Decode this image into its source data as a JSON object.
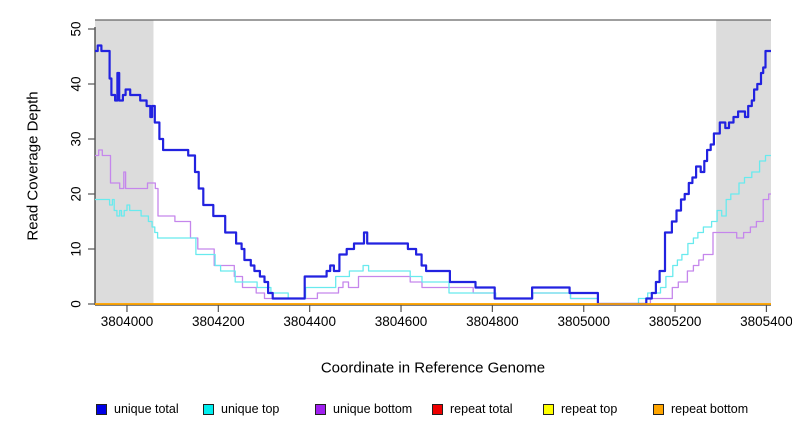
{
  "figure_background": "#ffffff",
  "chart_data": {
    "type": "line",
    "subtype": "step",
    "title": "",
    "xlabel": "Coordinate in Reference Genome",
    "ylabel": "Read Coverage Depth",
    "x_range": [
      3803930,
      3805410
    ],
    "y_range": [
      0,
      50
    ],
    "x_ticks": [
      3804000,
      3804200,
      3804400,
      3804600,
      3804800,
      3805000,
      3805200,
      3805400
    ],
    "x_tick_labels": [
      "3804000",
      "3804200",
      "3804400",
      "3804600",
      "3804800",
      "3805000",
      "3805200",
      "3805400"
    ],
    "y_ticks": [
      0,
      10,
      20,
      30,
      40,
      50
    ],
    "y_tick_labels": [
      "0",
      "10",
      "20",
      "30",
      "40",
      "50"
    ],
    "grid": false,
    "legend_position": "bottom",
    "shaded_regions": [
      {
        "name": "left-shaded-region",
        "x_start": 3803930,
        "x_end": 3804058,
        "color": "#DCDCDC"
      },
      {
        "name": "right-shaded-region",
        "x_start": 3805290,
        "x_end": 3805410,
        "color": "#DCDCDC"
      }
    ],
    "axis_colors": {
      "axis_line": "#333333",
      "tick": "#555555",
      "box_top": "#666666"
    },
    "legend_items": [
      {
        "label": "unique total",
        "color": "#0000E6"
      },
      {
        "label": "unique top",
        "color": "#00EEEE"
      },
      {
        "label": "unique bottom",
        "color": "#A020F0"
      },
      {
        "label": "repeat total",
        "color": "#EE0000"
      },
      {
        "label": "repeat top",
        "color": "#FFFF00"
      },
      {
        "label": "repeat bottom",
        "color": "#FFA500"
      }
    ],
    "series": [
      {
        "name": "repeat total",
        "color": "#EE0000",
        "line_color": "#EE0000",
        "line_width": 1.2,
        "points": [
          [
            3803930,
            0
          ]
        ]
      },
      {
        "name": "repeat top",
        "color": "#FFFF00",
        "line_color": "#FFFF00",
        "line_width": 1.2,
        "points": [
          [
            3803930,
            0
          ]
        ]
      },
      {
        "name": "unique bottom",
        "color": "#A020F0",
        "line_color": "#C586EC",
        "line_width": 1.3,
        "points": [
          [
            3803930,
            27
          ],
          [
            3803938,
            28
          ],
          [
            3803946,
            27
          ],
          [
            3803964,
            22
          ],
          [
            3803984,
            21
          ],
          [
            3803993,
            24
          ],
          [
            3803997,
            21
          ],
          [
            3804045,
            22
          ],
          [
            3804062,
            21
          ],
          [
            3804068,
            16
          ],
          [
            3804105,
            15
          ],
          [
            3804139,
            12
          ],
          [
            3804155,
            10
          ],
          [
            3804191,
            7
          ],
          [
            3804235,
            5
          ],
          [
            3804253,
            3
          ],
          [
            3804283,
            2
          ],
          [
            3804301,
            1
          ],
          [
            3804417,
            2
          ],
          [
            3804463,
            3
          ],
          [
            3804473,
            4
          ],
          [
            3804485,
            3
          ],
          [
            3804507,
            5
          ],
          [
            3804620,
            4
          ],
          [
            3804646,
            3
          ],
          [
            3804758,
            2
          ],
          [
            3804807,
            1
          ],
          [
            3804888,
            2
          ],
          [
            3804971,
            1
          ],
          [
            3805032,
            0
          ],
          [
            3805146,
            1
          ],
          [
            3805194,
            3
          ],
          [
            3805207,
            4
          ],
          [
            3805227,
            6
          ],
          [
            3805240,
            7
          ],
          [
            3805252,
            8
          ],
          [
            3805262,
            9
          ],
          [
            3805283,
            13
          ],
          [
            3805335,
            12
          ],
          [
            3805350,
            13
          ],
          [
            3805365,
            14
          ],
          [
            3805378,
            15
          ],
          [
            3805393,
            19
          ],
          [
            3805405,
            20
          ]
        ]
      },
      {
        "name": "unique top",
        "color": "#00EEEE",
        "line_color": "#68EAEE",
        "line_width": 1.3,
        "points": [
          [
            3803930,
            19
          ],
          [
            3803962,
            18
          ],
          [
            3803968,
            19
          ],
          [
            3803972,
            17
          ],
          [
            3803978,
            16
          ],
          [
            3803984,
            17
          ],
          [
            3803988,
            16
          ],
          [
            3803994,
            17
          ],
          [
            3804000,
            18
          ],
          [
            3804006,
            17
          ],
          [
            3804031,
            16
          ],
          [
            3804047,
            15
          ],
          [
            3804055,
            14
          ],
          [
            3804061,
            13
          ],
          [
            3804067,
            12
          ],
          [
            3804151,
            9
          ],
          [
            3804193,
            7
          ],
          [
            3804205,
            6
          ],
          [
            3804237,
            4
          ],
          [
            3804285,
            3
          ],
          [
            3804315,
            2
          ],
          [
            3804353,
            1
          ],
          [
            3804391,
            3
          ],
          [
            3804457,
            5
          ],
          [
            3804487,
            6
          ],
          [
            3804517,
            7
          ],
          [
            3804529,
            6
          ],
          [
            3804620,
            5
          ],
          [
            3804646,
            4
          ],
          [
            3804705,
            2
          ],
          [
            3804807,
            1
          ],
          [
            3804888,
            2
          ],
          [
            3804971,
            1
          ],
          [
            3805032,
            0
          ],
          [
            3805120,
            1
          ],
          [
            3805140,
            2
          ],
          [
            3805168,
            3
          ],
          [
            3805180,
            5
          ],
          [
            3805195,
            7
          ],
          [
            3805205,
            8
          ],
          [
            3805215,
            9
          ],
          [
            3805228,
            11
          ],
          [
            3805240,
            12
          ],
          [
            3805250,
            13
          ],
          [
            3805262,
            14
          ],
          [
            3805280,
            15
          ],
          [
            3805292,
            17
          ],
          [
            3805302,
            16
          ],
          [
            3805312,
            19
          ],
          [
            3805322,
            20
          ],
          [
            3805340,
            22
          ],
          [
            3805352,
            23
          ],
          [
            3805368,
            24
          ],
          [
            3805385,
            26
          ],
          [
            3805398,
            27
          ]
        ]
      },
      {
        "name": "unique total",
        "color": "#0000E6",
        "line_color": "#2222E0",
        "line_width": 2.2,
        "points": [
          [
            3803930,
            46
          ],
          [
            3803936,
            47
          ],
          [
            3803944,
            46
          ],
          [
            3803962,
            41
          ],
          [
            3803966,
            38
          ],
          [
            3803974,
            37
          ],
          [
            3803979,
            42
          ],
          [
            3803983,
            37
          ],
          [
            3803991,
            38
          ],
          [
            3803997,
            39
          ],
          [
            3804007,
            38
          ],
          [
            3804029,
            37
          ],
          [
            3804043,
            36
          ],
          [
            3804051,
            34
          ],
          [
            3804055,
            36
          ],
          [
            3804061,
            33
          ],
          [
            3804071,
            30
          ],
          [
            3804079,
            28
          ],
          [
            3804134,
            27
          ],
          [
            3804149,
            24
          ],
          [
            3804157,
            21
          ],
          [
            3804167,
            18
          ],
          [
            3804189,
            16
          ],
          [
            3804215,
            13
          ],
          [
            3804239,
            11
          ],
          [
            3804251,
            10
          ],
          [
            3804257,
            8
          ],
          [
            3804271,
            7
          ],
          [
            3804279,
            6
          ],
          [
            3804291,
            5
          ],
          [
            3804301,
            4
          ],
          [
            3804309,
            2
          ],
          [
            3804319,
            1
          ],
          [
            3804389,
            5
          ],
          [
            3804437,
            6
          ],
          [
            3804445,
            7
          ],
          [
            3804453,
            6
          ],
          [
            3804465,
            9
          ],
          [
            3804481,
            10
          ],
          [
            3804497,
            11
          ],
          [
            3804519,
            13
          ],
          [
            3804526,
            11
          ],
          [
            3804615,
            10
          ],
          [
            3804633,
            9
          ],
          [
            3804645,
            7
          ],
          [
            3804655,
            6
          ],
          [
            3804707,
            4
          ],
          [
            3804763,
            3
          ],
          [
            3804805,
            1
          ],
          [
            3804887,
            3
          ],
          [
            3804969,
            2
          ],
          [
            3805031,
            0
          ],
          [
            3805137,
            1
          ],
          [
            3805149,
            2
          ],
          [
            3805158,
            4
          ],
          [
            3805166,
            6
          ],
          [
            3805178,
            13
          ],
          [
            3805193,
            15
          ],
          [
            3805203,
            17
          ],
          [
            3805213,
            19
          ],
          [
            3805221,
            20
          ],
          [
            3805230,
            22
          ],
          [
            3805238,
            23
          ],
          [
            3805246,
            25
          ],
          [
            3805256,
            24
          ],
          [
            3805264,
            26
          ],
          [
            3805270,
            28
          ],
          [
            3805278,
            29
          ],
          [
            3805285,
            31
          ],
          [
            3805298,
            33
          ],
          [
            3805310,
            32
          ],
          [
            3805318,
            33
          ],
          [
            3805328,
            34
          ],
          [
            3805338,
            35
          ],
          [
            3805353,
            34
          ],
          [
            3805360,
            36
          ],
          [
            3805368,
            37
          ],
          [
            3805373,
            39
          ],
          [
            3805380,
            40
          ],
          [
            3805388,
            42
          ],
          [
            3805393,
            43
          ],
          [
            3805398,
            46
          ]
        ]
      },
      {
        "name": "repeat bottom",
        "color": "#FFA500",
        "line_color": "#FFA500",
        "line_width": 1.8,
        "points": [
          [
            3803930,
            0
          ]
        ]
      }
    ]
  }
}
